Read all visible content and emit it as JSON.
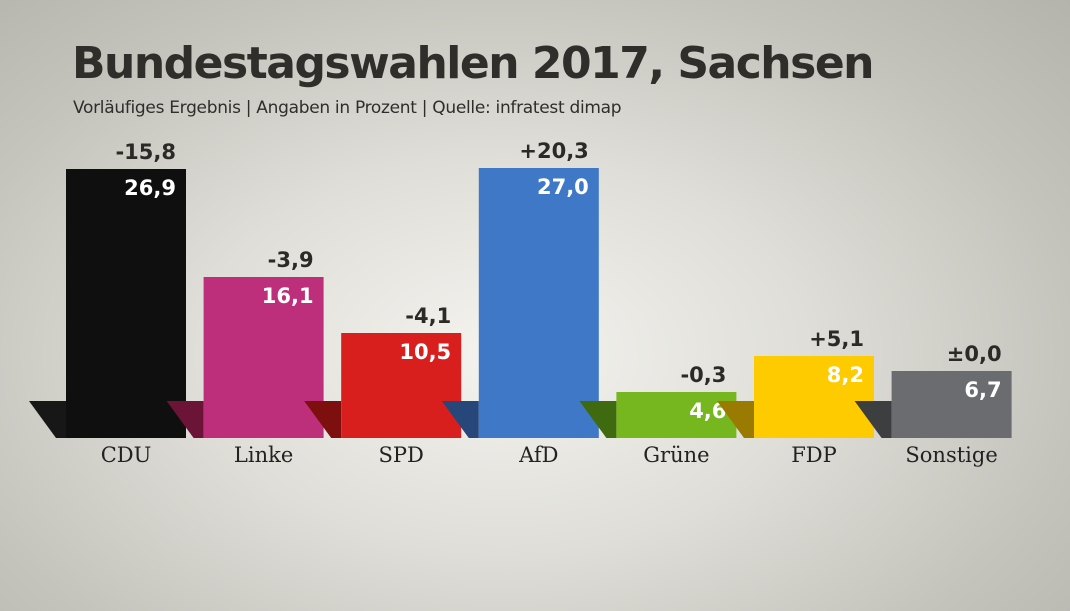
{
  "title": "Bundestagswahlen 2017, Sachsen",
  "subtitle": "Vorläufiges Ergebnis | Angaben in Prozent | Quelle: infratest dimap",
  "chart_data": {
    "type": "bar",
    "title": "Bundestagswahlen 2017, Sachsen",
    "subtitle": "Vorläufiges Ergebnis | Angaben in Prozent | Quelle: infratest dimap",
    "categories": [
      "CDU",
      "Linke",
      "SPD",
      "AfD",
      "Grüne",
      "FDP",
      "Sonstige"
    ],
    "values": [
      26.9,
      16.1,
      10.5,
      27.0,
      4.6,
      8.2,
      6.7
    ],
    "value_labels": [
      "26,9",
      "16,1",
      "10,5",
      "27,0",
      "4,6",
      "8,2",
      "6,7"
    ],
    "change_labels": [
      "-15,8",
      "-3,9",
      "-4,1",
      "+20,3",
      "-0,3",
      "+5,1",
      "±0,0"
    ],
    "colors": [
      "#0f0f0f",
      "#bd2f7a",
      "#d81f1e",
      "#3e78c6",
      "#76b61e",
      "#fecb00",
      "#6b6c6f"
    ],
    "shadow_colors": [
      "#171717",
      "#6b1438",
      "#7d0f0e",
      "#27467a",
      "#3f6a10",
      "#9a7a00",
      "#3d3e40"
    ],
    "ylim": [
      0,
      27.0
    ],
    "grid": false,
    "legend": "none"
  }
}
